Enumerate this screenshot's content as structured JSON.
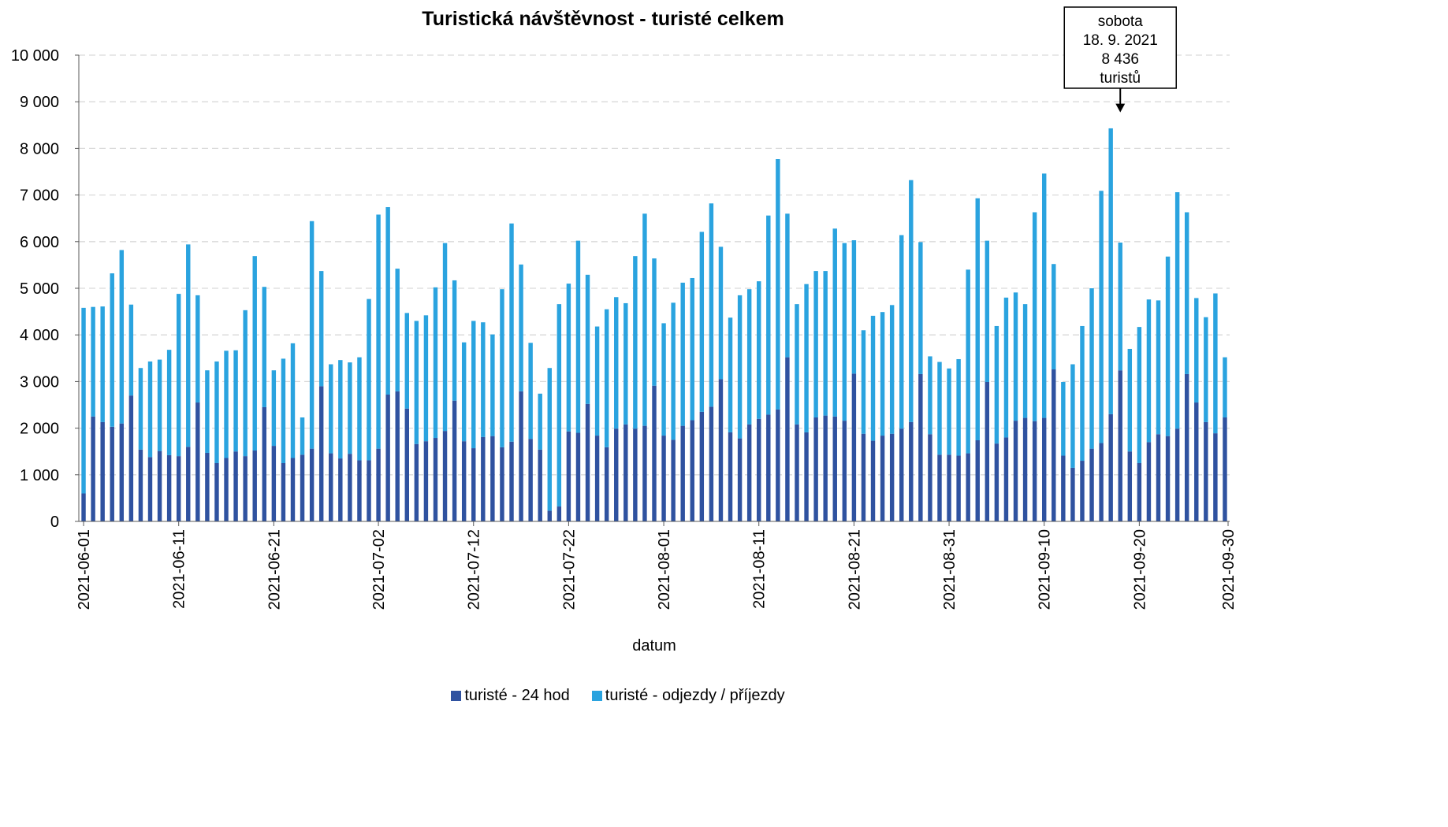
{
  "chart_data": {
    "type": "bar",
    "stacked": true,
    "title": "Turistická návštěvnost - turisté celkem",
    "xlabel": "datum",
    "ylabel": "",
    "ylim": [
      0,
      10000
    ],
    "y_ticks": [
      "0",
      "1 000",
      "2 000",
      "3 000",
      "4 000",
      "5 000",
      "6 000",
      "7 000",
      "8 000",
      "9 000",
      "10 000"
    ],
    "y_tick_values": [
      0,
      1000,
      2000,
      3000,
      4000,
      5000,
      6000,
      7000,
      8000,
      9000,
      10000
    ],
    "grid": true,
    "legend_position": "bottom",
    "x_start_date": "2021-06-01",
    "x_tick_labels": [
      "2021-06-01",
      "2021-06-11",
      "2021-06-21",
      "2021-07-02",
      "2021-07-12",
      "2021-07-22",
      "2021-08-01",
      "2021-08-11",
      "2021-08-21",
      "2021-08-31",
      "2021-09-10",
      "2021-09-20",
      "2021-09-30"
    ],
    "series": [
      {
        "name": "turisté - 24 hod",
        "color": "#2f52a0",
        "values": [
          600,
          2250,
          2130,
          2030,
          2100,
          2700,
          1540,
          1380,
          1510,
          1420,
          1400,
          1600,
          2550,
          1470,
          1250,
          1360,
          1500,
          1400,
          1520,
          2450,
          1620,
          1250,
          1360,
          1430,
          1560,
          2900,
          1460,
          1350,
          1450,
          1310,
          1310,
          1560,
          2720,
          2790,
          2420,
          1660,
          1720,
          1790,
          1940,
          2590,
          1720,
          1570,
          1810,
          1830,
          1590,
          1710,
          2790,
          1770,
          1540,
          230,
          320,
          1930,
          1900,
          2520,
          1840,
          1590,
          1990,
          2080,
          1990,
          2050,
          2910,
          1840,
          1750,
          2050,
          2170,
          2350,
          2460,
          3050,
          1910,
          1780,
          2080,
          2200,
          2290,
          2400,
          3520,
          2080,
          1910,
          2230,
          2270,
          2250,
          2160,
          3170,
          1880,
          1730,
          1840,
          1880,
          1990,
          2130,
          3160,
          1870,
          1430,
          1430,
          1410,
          1460,
          1740,
          2990,
          1670,
          1800,
          2160,
          2220,
          2150,
          2220,
          3260,
          1410,
          1150,
          1300,
          1560,
          1680,
          2300,
          3240,
          1500,
          1250,
          1700,
          1870,
          1830,
          1990,
          3160,
          2550,
          2130,
          1890,
          2230
        ]
      },
      {
        "name": "turisté - odjezdy / příjezdy",
        "color": "#2aa3df",
        "values": [
          3980,
          2350,
          2480,
          3290,
          3720,
          1950,
          1750,
          2050,
          1960,
          2260,
          3480,
          4340,
          2300,
          1770,
          2180,
          2300,
          2170,
          3130,
          4170,
          2580,
          1620,
          2240,
          2460,
          800,
          4880,
          2470,
          1910,
          2110,
          1960,
          2210,
          3460,
          5020,
          4020,
          2630,
          2050,
          2640,
          2700,
          3230,
          4030,
          2580,
          2120,
          2730,
          2460,
          2180,
          3390,
          4680,
          2720,
          2060,
          1200,
          3060,
          4340,
          3170,
          4120,
          2770,
          2340,
          2960,
          2820,
          2600,
          3700,
          4550,
          2730,
          2410,
          2940,
          3070,
          3050,
          3860,
          4360,
          2840,
          2460,
          3070,
          2900,
          2950,
          4270,
          5370,
          3080,
          2580,
          3180,
          3140,
          3100,
          4030,
          3810,
          2860,
          2220,
          2680,
          2650,
          2760,
          4150,
          5190,
          2830,
          1670,
          1990,
          1850,
          2070,
          3940,
          5190,
          3030,
          2520,
          3000,
          2750,
          2440,
          4480,
          5240,
          2260,
          1580,
          2220,
          2890,
          3440,
          5410,
          6130,
          2740,
          2200,
          2920,
          3060,
          2870,
          3850,
          5070,
          3470,
          2240,
          2250,
          3000,
          1290
        ]
      }
    ],
    "annotation": {
      "lines": [
        "sobota",
        "18. 9. 2021",
        "8 436",
        "turistů"
      ],
      "target_date": "2021-09-18",
      "target_value": 8436
    }
  }
}
